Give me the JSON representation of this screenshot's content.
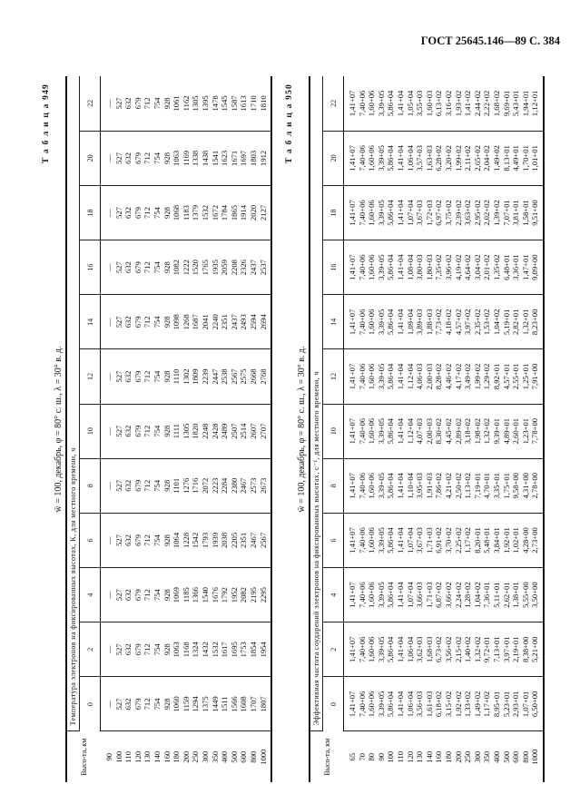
{
  "page_header": "ГОСТ 25645.146—89 С. 384",
  "tables": [
    {
      "label": "Т а б л и ц а 949",
      "conditions": "w̄ = 100, декабрь, φ = 80° с. ш., λ = 30° в. д.",
      "caption": "Температура электронов на фиксированных высотах, К, для местного времени, ч",
      "height_header": "Высо-та, км",
      "heights": [
        "90",
        "100",
        "110",
        "120",
        "130",
        "140",
        "160",
        "180",
        "200",
        "250",
        "300",
        "350",
        "400",
        "500",
        "600",
        "800",
        "1000"
      ],
      "columns": [
        {
          "hour": "0",
          "values": [
            "—",
            "527",
            "632",
            "679",
            "712",
            "754",
            "928",
            "1060",
            "1159",
            "1294",
            "1375",
            "1449",
            "1511",
            "1566",
            "1608",
            "1707",
            "1807"
          ]
        },
        {
          "hour": "2",
          "values": [
            "—",
            "527",
            "632",
            "679",
            "712",
            "754",
            "928",
            "1063",
            "1168",
            "1324",
            "1432",
            "1532",
            "1617",
            "1695",
            "1753",
            "1854",
            "1954"
          ]
        },
        {
          "hour": "4",
          "values": [
            "—",
            "527",
            "632",
            "679",
            "712",
            "754",
            "928",
            "1069",
            "1185",
            "1366",
            "1540",
            "1676",
            "1792",
            "1952",
            "2082",
            "2195",
            "2295"
          ]
        },
        {
          "hour": "6",
          "values": [
            "—",
            "527",
            "632",
            "679",
            "712",
            "754",
            "928",
            "1064",
            "1228",
            "1542",
            "1793",
            "1939",
            "2038",
            "2205",
            "2351",
            "2467",
            "2567"
          ]
        },
        {
          "hour": "8",
          "values": [
            "—",
            "527",
            "632",
            "679",
            "712",
            "754",
            "928",
            "1101",
            "1276",
            "1716",
            "2072",
            "2223",
            "2284",
            "2380",
            "2467",
            "2573",
            "2673"
          ]
        },
        {
          "hour": "10",
          "values": [
            "—",
            "527",
            "632",
            "679",
            "712",
            "754",
            "928",
            "1111",
            "1305",
            "1820",
            "2248",
            "2428",
            "2489",
            "2507",
            "2514",
            "2607",
            "2707"
          ]
        },
        {
          "hour": "12",
          "values": [
            "—",
            "527",
            "632",
            "679",
            "712",
            "754",
            "928",
            "1110",
            "1302",
            "1809",
            "2239",
            "2447",
            "2538",
            "2567",
            "2575",
            "2668",
            "2768"
          ]
        },
        {
          "hour": "14",
          "values": [
            "—",
            "527",
            "632",
            "679",
            "712",
            "754",
            "928",
            "1098",
            "1268",
            "1687",
            "2041",
            "2240",
            "2351",
            "2437",
            "2493",
            "2594",
            "2694"
          ]
        },
        {
          "hour": "16",
          "values": [
            "—",
            "527",
            "632",
            "679",
            "712",
            "754",
            "928",
            "1082",
            "1222",
            "1520",
            "1765",
            "1935",
            "2059",
            "2208",
            "2326",
            "2437",
            "2537"
          ]
        },
        {
          "hour": "18",
          "values": [
            "—",
            "527",
            "632",
            "679",
            "712",
            "754",
            "928",
            "1068",
            "1183",
            "1379",
            "1532",
            "1672",
            "1784",
            "1865",
            "1914",
            "2020",
            "2127"
          ]
        },
        {
          "hour": "20",
          "values": [
            "—",
            "527",
            "632",
            "679",
            "712",
            "754",
            "928",
            "1063",
            "1169",
            "1338",
            "1438",
            "1541",
            "1623",
            "1671",
            "1697",
            "1803",
            "1912"
          ]
        },
        {
          "hour": "22",
          "values": [
            "—",
            "527",
            "632",
            "679",
            "712",
            "754",
            "928",
            "1061",
            "1162",
            "1305",
            "1395",
            "1478",
            "1545",
            "1587",
            "1613",
            "1710",
            "1810"
          ]
        }
      ]
    },
    {
      "label": "Т а б л и ц а 950",
      "conditions": "w̄ = 100, декабрь, φ = 80° с. ш., λ = 30° в. д.",
      "caption": "Эффективная частота соударений электронов на фиксированных высотах, с⁻¹, для местного времени, ч",
      "height_header": "Высо-та, км",
      "heights": [
        "65",
        "70",
        "80",
        "90",
        "100",
        "110",
        "120",
        "130",
        "140",
        "160",
        "180",
        "200",
        "250",
        "300",
        "350",
        "400",
        "500",
        "600",
        "800",
        "1000"
      ],
      "columns": [
        {
          "hour": "0",
          "values": [
            "1,41+07",
            "7,40+06",
            "1,60+06",
            "3,39+05",
            "5,86+04",
            "1,41+04",
            "1,06+04",
            "3,56+03",
            "1,61+03",
            "6,18+02",
            "3,15+02",
            "1,92+02",
            "1,33+02",
            "1,49+02",
            "1,17+02",
            "8,95+01",
            "5,23+01",
            "2,93+01",
            "1,07+01",
            "6,50+00"
          ]
        },
        {
          "hour": "2",
          "values": [
            "1,41+07",
            "7,40+06",
            "1,60+06",
            "3,39+05",
            "5,86+04",
            "1,41+04",
            "1,06+04",
            "3,62+03",
            "1,68+03",
            "6,73+02",
            "3,56+02",
            "2,15+02",
            "1,40+02",
            "1,32+02",
            "9,72+01",
            "7,13+01",
            "3,97+01",
            "2,19+01",
            "8,38+00",
            "5,21+00"
          ]
        },
        {
          "hour": "4",
          "values": [
            "1,41+07",
            "7,40+06",
            "1,60+06",
            "3,39+05",
            "5,86+04",
            "1,41+04",
            "1,07+04",
            "3,66+03",
            "1,71+03",
            "6,87+02",
            "3,66+02",
            "2,24+02",
            "1,28+02",
            "1,04+02",
            "7,36+01",
            "5,11+01",
            "2,62+01",
            "1,38+01",
            "5,55+00",
            "3,50+00"
          ]
        },
        {
          "hour": "6",
          "values": [
            "1,41+07",
            "7,40+06",
            "1,60+06",
            "3,39+05",
            "5,86+04",
            "1,41+04",
            "1,07+04",
            "3,67+03",
            "1,71+03",
            "6,91+02",
            "3,70+02",
            "2,25+02",
            "1,17+02",
            "8,20+01",
            "5,48+01",
            "3,84+01",
            "1,92+01",
            "1,02+01",
            "4,28+00",
            "2,73+00"
          ]
        },
        {
          "hour": "8",
          "values": [
            "1,41+07",
            "7,40+06",
            "1,60+06",
            "3,39+05",
            "5,86+04",
            "1,41+04",
            "1,10+04",
            "3,95+03",
            "1,91+03",
            "7,86+02",
            "4,21+02",
            "2,50+02",
            "1,13+02",
            "7,19+01",
            "4,70+01",
            "3,35+01",
            "1,75+01",
            "9,58+00",
            "4,31+00",
            "2,78+00"
          ]
        },
        {
          "hour": "10",
          "values": [
            "1,41+07",
            "7,40+06",
            "1,60+06",
            "3,39+05",
            "5,86+04",
            "1,41+04",
            "1,12+04",
            "4,07+03",
            "2,00+03",
            "8,30+02",
            "4,45+02",
            "2,89+02",
            "3,18+02",
            "1,98+02",
            "1,32+02",
            "9,39+01",
            "4,89+01",
            "2,60+01",
            "1,23+01",
            "7,78+00"
          ]
        },
        {
          "hour": "12",
          "values": [
            "1,41+07",
            "7,40+06",
            "1,60+06",
            "3,39+05",
            "5,86+04",
            "1,41+04",
            "1,12+04",
            "4,06+03",
            "2,00+03",
            "8,28+02",
            "4,46+02",
            "4,17+02",
            "3,49+02",
            "1,99+02",
            "1,29+02",
            "8,92+01",
            "4,57+01",
            "2,55+01",
            "1,25+01",
            "7,91+00"
          ]
        },
        {
          "hour": "14",
          "values": [
            "1,41+07",
            "7,40+06",
            "1,60+06",
            "3,39+05",
            "5,86+04",
            "1,41+04",
            "1,09+04",
            "3,89+03",
            "1,88+03",
            "7,73+02",
            "4,18+02",
            "4,57+02",
            "3,97+02",
            "2,35+02",
            "1,53+02",
            "1,04+02",
            "5,19+01",
            "2,82+01",
            "1,32+01",
            "8,23+00"
          ]
        },
        {
          "hour": "16",
          "values": [
            "1,41+07",
            "7,40+06",
            "1,60+06",
            "3,39+05",
            "5,86+04",
            "1,41+04",
            "1,08+04",
            "3,80+03",
            "1,80+03",
            "7,35+02",
            "3,96+02",
            "4,19+02",
            "4,64+02",
            "3,04+02",
            "2,01+02",
            "1,35+02",
            "6,48+01",
            "3,36+01",
            "1,47+01",
            "9,09+00"
          ]
        },
        {
          "hour": "18",
          "values": [
            "1,41+07",
            "7,40+06",
            "1,60+06",
            "3,39+05",
            "5,86+04",
            "1,41+04",
            "1,07+04",
            "3,67+03",
            "1,72+03",
            "6,97+02",
            "3,75+02",
            "2,39+02",
            "3,63+02",
            "2,95+02",
            "2,02+02",
            "1,39+02",
            "7,07+01",
            "3,81+01",
            "1,58+01",
            "9,51+00"
          ]
        },
        {
          "hour": "20",
          "values": [
            "1,41+07",
            "7,40+06",
            "1,60+06",
            "3,39+05",
            "5,86+04",
            "1,41+04",
            "1,06+04",
            "3,57+03",
            "1,63+03",
            "6,28+02",
            "3,20+02",
            "1,99+02",
            "2,11+02",
            "2,65+02",
            "2,04+02",
            "1,49+02",
            "8,13+01",
            "4,49+01",
            "1,70+01",
            "1,01+01"
          ]
        },
        {
          "hour": "22",
          "values": [
            "1,41+07",
            "7,40+06",
            "1,60+06",
            "3,39+05",
            "5,86+04",
            "1,41+04",
            "1,05+04",
            "3,55+03",
            "1,60+03",
            "6,13+02",
            "3,16+02",
            "1,93+02",
            "1,41+02",
            "2,44+02",
            "2,22+02",
            "1,68+02",
            "9,69+01",
            "5,43+01",
            "1,94+01",
            "1,12+01"
          ]
        }
      ]
    }
  ]
}
